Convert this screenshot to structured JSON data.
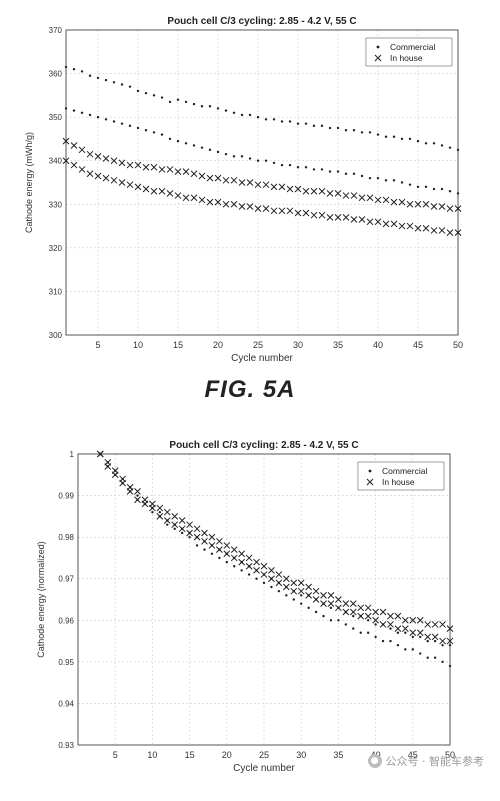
{
  "chart_data": [
    {
      "type": "scatter",
      "title": "Pouch cell C/3 cycling: 2.85 - 4.2 V, 55 C",
      "xlabel": "Cycle number",
      "ylabel": "Cathode energy (mWh/g)",
      "xlim": [
        1,
        50
      ],
      "ylim": [
        300,
        370
      ],
      "xticks": [
        5,
        10,
        15,
        20,
        25,
        30,
        35,
        40,
        45,
        50
      ],
      "yticks": [
        300,
        310,
        320,
        330,
        340,
        350,
        360,
        370
      ],
      "grid": true,
      "legend_position": "top-right",
      "series": [
        {
          "name": "Commercial",
          "marker": "dot",
          "x": [
            1,
            2,
            3,
            4,
            5,
            6,
            7,
            8,
            9,
            10,
            11,
            12,
            13,
            14,
            15,
            16,
            17,
            18,
            19,
            20,
            21,
            22,
            23,
            24,
            25,
            26,
            27,
            28,
            29,
            30,
            31,
            32,
            33,
            34,
            35,
            36,
            37,
            38,
            39,
            40,
            41,
            42,
            43,
            44,
            45,
            46,
            47,
            48,
            49,
            50
          ],
          "y": [
            361.5,
            361,
            360.5,
            359.5,
            359,
            358.5,
            358,
            357.5,
            357,
            356,
            355.5,
            355,
            354.5,
            353.5,
            354,
            353.5,
            353,
            352.5,
            352.5,
            352,
            351.5,
            351,
            350.5,
            350.5,
            350,
            349.5,
            349.5,
            349,
            349,
            348.5,
            348.5,
            348,
            348,
            347.5,
            347.5,
            347,
            347,
            346.5,
            346.5,
            346,
            345.5,
            345.5,
            345,
            345,
            344.5,
            344,
            344,
            343.5,
            343,
            342.5
          ]
        },
        {
          "name": "Commercial",
          "marker": "dot",
          "x": [
            1,
            2,
            3,
            4,
            5,
            6,
            7,
            8,
            9,
            10,
            11,
            12,
            13,
            14,
            15,
            16,
            17,
            18,
            19,
            20,
            21,
            22,
            23,
            24,
            25,
            26,
            27,
            28,
            29,
            30,
            31,
            32,
            33,
            34,
            35,
            36,
            37,
            38,
            39,
            40,
            41,
            42,
            43,
            44,
            45,
            46,
            47,
            48,
            49,
            50
          ],
          "y": [
            352,
            351.5,
            351,
            350.5,
            350,
            349.5,
            349,
            348.5,
            348,
            347.5,
            347,
            346.5,
            346,
            345,
            344.5,
            344,
            343.5,
            343,
            342.5,
            342,
            341.5,
            341,
            341,
            340.5,
            340,
            340,
            339.5,
            339,
            339,
            338.5,
            338.5,
            338,
            338,
            337.5,
            337.5,
            337,
            337,
            336.5,
            336,
            336,
            335.5,
            335.5,
            335,
            334.5,
            334,
            334,
            333.5,
            333.5,
            333,
            332.5
          ]
        },
        {
          "name": "In house",
          "marker": "x",
          "x": [
            1,
            2,
            3,
            4,
            5,
            6,
            7,
            8,
            9,
            10,
            11,
            12,
            13,
            14,
            15,
            16,
            17,
            18,
            19,
            20,
            21,
            22,
            23,
            24,
            25,
            26,
            27,
            28,
            29,
            30,
            31,
            32,
            33,
            34,
            35,
            36,
            37,
            38,
            39,
            40,
            41,
            42,
            43,
            44,
            45,
            46,
            47,
            48,
            49,
            50
          ],
          "y": [
            344.5,
            343.5,
            342.5,
            341.5,
            341,
            340.5,
            340,
            339.5,
            339,
            339,
            338.5,
            338.5,
            338,
            338,
            337.5,
            337.5,
            337,
            336.5,
            336,
            336,
            335.5,
            335.5,
            335,
            335,
            334.5,
            334.5,
            334,
            334,
            333.5,
            333.5,
            333,
            333,
            333,
            332.5,
            332.5,
            332,
            332,
            331.5,
            331.5,
            331,
            331,
            330.5,
            330.5,
            330,
            330,
            330,
            329.5,
            329.5,
            329,
            329
          ]
        },
        {
          "name": "In house",
          "marker": "x",
          "x": [
            1,
            2,
            3,
            4,
            5,
            6,
            7,
            8,
            9,
            10,
            11,
            12,
            13,
            14,
            15,
            16,
            17,
            18,
            19,
            20,
            21,
            22,
            23,
            24,
            25,
            26,
            27,
            28,
            29,
            30,
            31,
            32,
            33,
            34,
            35,
            36,
            37,
            38,
            39,
            40,
            41,
            42,
            43,
            44,
            45,
            46,
            47,
            48,
            49,
            50
          ],
          "y": [
            340,
            339,
            338,
            337,
            336.5,
            336,
            335.5,
            335,
            334.5,
            334,
            333.5,
            333,
            333,
            332.5,
            332,
            331.5,
            331.5,
            331,
            330.5,
            330.5,
            330,
            330,
            329.5,
            329.5,
            329,
            329,
            328.5,
            328.5,
            328.5,
            328,
            328,
            327.5,
            327.5,
            327,
            327,
            327,
            326.5,
            326.5,
            326,
            326,
            325.5,
            325.5,
            325,
            325,
            324.5,
            324.5,
            324,
            324,
            323.5,
            323.5
          ]
        }
      ]
    },
    {
      "type": "scatter",
      "title": "Pouch cell C/3 cycling: 2.85 - 4.2 V, 55 C",
      "xlabel": "Cycle number",
      "ylabel": "Cathode energy (normalized)",
      "xlim": [
        0,
        50
      ],
      "ylim": [
        0.93,
        1.0
      ],
      "xticks": [
        5,
        10,
        15,
        20,
        25,
        30,
        35,
        40,
        45,
        50
      ],
      "yticks": [
        0.93,
        0.94,
        0.95,
        0.96,
        0.97,
        0.98,
        0.99,
        1
      ],
      "grid": true,
      "legend_position": "top-right",
      "series": [
        {
          "name": "Commercial",
          "marker": "dot",
          "x": [
            3,
            4,
            5,
            6,
            7,
            8,
            9,
            10,
            11,
            12,
            13,
            14,
            15,
            16,
            17,
            18,
            19,
            20,
            21,
            22,
            23,
            24,
            25,
            26,
            27,
            28,
            29,
            30,
            31,
            32,
            33,
            34,
            35,
            36,
            37,
            38,
            39,
            40,
            41,
            42,
            43,
            44,
            45,
            46,
            47,
            48,
            49,
            50
          ],
          "y": [
            1,
            0.997,
            0.995,
            0.993,
            0.991,
            0.989,
            0.988,
            0.986,
            0.985,
            0.983,
            0.982,
            0.981,
            0.98,
            0.978,
            0.977,
            0.976,
            0.975,
            0.974,
            0.973,
            0.972,
            0.971,
            0.97,
            0.969,
            0.968,
            0.967,
            0.966,
            0.965,
            0.964,
            0.963,
            0.962,
            0.961,
            0.96,
            0.96,
            0.959,
            0.958,
            0.957,
            0.957,
            0.956,
            0.955,
            0.955,
            0.954,
            0.953,
            0.953,
            0.952,
            0.951,
            0.951,
            0.95,
            0.949
          ]
        },
        {
          "name": "Commercial",
          "marker": "dot",
          "x": [
            3,
            4,
            5,
            6,
            7,
            8,
            9,
            10,
            11,
            12,
            13,
            14,
            15,
            16,
            17,
            18,
            19,
            20,
            21,
            22,
            23,
            24,
            25,
            26,
            27,
            28,
            29,
            30,
            31,
            32,
            33,
            34,
            35,
            36,
            37,
            38,
            39,
            40,
            41,
            42,
            43,
            44,
            45,
            46,
            47,
            48,
            49,
            50
          ],
          "y": [
            1,
            0.998,
            0.996,
            0.994,
            0.992,
            0.99,
            0.988,
            0.987,
            0.986,
            0.984,
            0.983,
            0.982,
            0.981,
            0.98,
            0.979,
            0.978,
            0.977,
            0.976,
            0.975,
            0.974,
            0.973,
            0.972,
            0.971,
            0.97,
            0.969,
            0.968,
            0.967,
            0.966,
            0.966,
            0.965,
            0.964,
            0.963,
            0.963,
            0.962,
            0.961,
            0.961,
            0.96,
            0.959,
            0.959,
            0.958,
            0.957,
            0.957,
            0.956,
            0.956,
            0.955,
            0.955,
            0.954,
            0.954
          ]
        },
        {
          "name": "In house",
          "marker": "x",
          "x": [
            3,
            4,
            5,
            6,
            7,
            8,
            9,
            10,
            11,
            12,
            13,
            14,
            15,
            16,
            17,
            18,
            19,
            20,
            21,
            22,
            23,
            24,
            25,
            26,
            27,
            28,
            29,
            30,
            31,
            32,
            33,
            34,
            35,
            36,
            37,
            38,
            39,
            40,
            41,
            42,
            43,
            44,
            45,
            46,
            47,
            48,
            49,
            50
          ],
          "y": [
            1,
            0.998,
            0.996,
            0.994,
            0.992,
            0.991,
            0.989,
            0.988,
            0.987,
            0.986,
            0.985,
            0.984,
            0.983,
            0.982,
            0.981,
            0.98,
            0.979,
            0.978,
            0.977,
            0.976,
            0.975,
            0.974,
            0.973,
            0.972,
            0.971,
            0.97,
            0.969,
            0.969,
            0.968,
            0.967,
            0.966,
            0.966,
            0.965,
            0.964,
            0.964,
            0.963,
            0.963,
            0.962,
            0.962,
            0.961,
            0.961,
            0.96,
            0.96,
            0.96,
            0.959,
            0.959,
            0.959,
            0.958
          ]
        },
        {
          "name": "In house",
          "marker": "x",
          "x": [
            3,
            4,
            5,
            6,
            7,
            8,
            9,
            10,
            11,
            12,
            13,
            14,
            15,
            16,
            17,
            18,
            19,
            20,
            21,
            22,
            23,
            24,
            25,
            26,
            27,
            28,
            29,
            30,
            31,
            32,
            33,
            34,
            35,
            36,
            37,
            38,
            39,
            40,
            41,
            42,
            43,
            44,
            45,
            46,
            47,
            48,
            49,
            50
          ],
          "y": [
            1,
            0.997,
            0.995,
            0.993,
            0.991,
            0.989,
            0.988,
            0.987,
            0.985,
            0.984,
            0.983,
            0.982,
            0.981,
            0.98,
            0.979,
            0.978,
            0.977,
            0.976,
            0.975,
            0.974,
            0.973,
            0.972,
            0.971,
            0.97,
            0.969,
            0.968,
            0.967,
            0.967,
            0.966,
            0.965,
            0.964,
            0.964,
            0.963,
            0.962,
            0.962,
            0.961,
            0.961,
            0.96,
            0.959,
            0.959,
            0.958,
            0.958,
            0.957,
            0.957,
            0.956,
            0.956,
            0.955,
            0.955
          ]
        }
      ]
    }
  ],
  "figure_label": "FIG. 5A",
  "legend": {
    "commercial": "Commercial",
    "in_house": "In house"
  },
  "watermark": {
    "text": "公众号 · 智能车参考",
    "icon": "wechat-icon"
  },
  "colors": {
    "marks": "#222222",
    "grid": "#cfcfcf",
    "axes": "#555555"
  }
}
